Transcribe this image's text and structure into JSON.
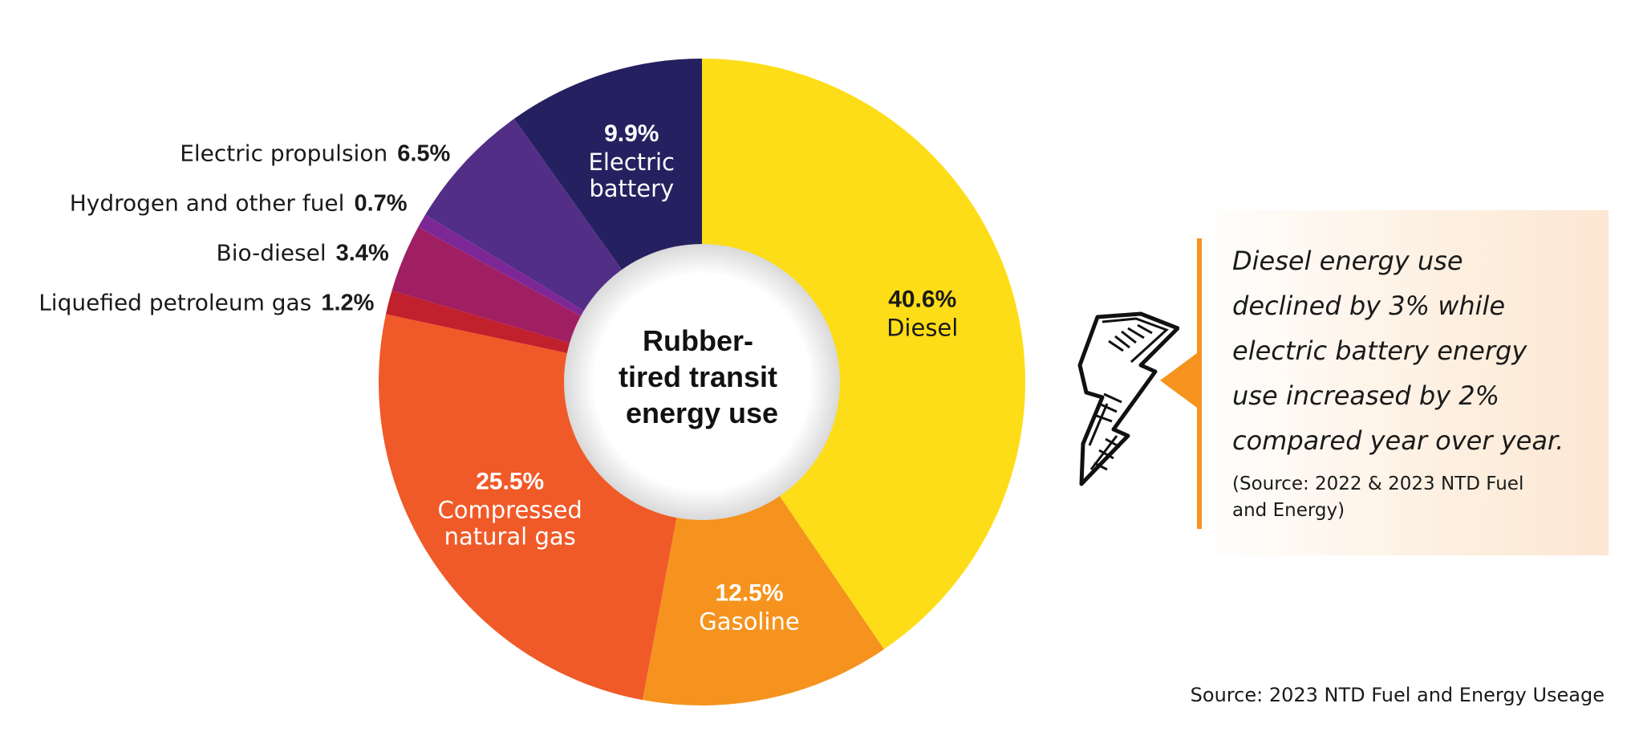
{
  "chart_data": {
    "type": "pie",
    "title": "Rubber-tired transit energy use",
    "title_lines": [
      "Rubber-",
      "tired transit",
      "energy use"
    ],
    "slices": [
      {
        "label": "Diesel",
        "label_lines": [
          "Diesel"
        ],
        "value": 40.6,
        "display": "40.6%",
        "color": "#fddd17",
        "text_color": "#1a1a1a",
        "label_position": "inside"
      },
      {
        "label": "Gasoline",
        "label_lines": [
          "Gasoline"
        ],
        "value": 12.5,
        "display": "12.5%",
        "color": "#f5931e",
        "text_color": "#ffffff",
        "label_position": "inside"
      },
      {
        "label": "Compressed natural gas",
        "label_lines": [
          "Compressed",
          "natural gas"
        ],
        "value": 25.5,
        "display": "25.5%",
        "color": "#f05a28",
        "text_color": "#ffffff",
        "label_position": "inside"
      },
      {
        "label": "Liquefied petroleum gas",
        "label_lines": [
          "Liquefied petroleum gas"
        ],
        "value": 1.2,
        "display": "1.2%",
        "color": "#c1202d",
        "text_color": "#1a1a1a",
        "label_position": "outside"
      },
      {
        "label": "Bio-diesel",
        "label_lines": [
          "Bio-diesel"
        ],
        "value": 3.4,
        "display": "3.4%",
        "color": "#a01f63",
        "text_color": "#1a1a1a",
        "label_position": "outside"
      },
      {
        "label": "Hydrogen and other fuel",
        "label_lines": [
          "Hydrogen and other fuel"
        ],
        "value": 0.7,
        "display": "0.7%",
        "color": "#7d2796",
        "text_color": "#1a1a1a",
        "label_position": "outside"
      },
      {
        "label": "Electric propulsion",
        "label_lines": [
          "Electric propulsion"
        ],
        "value": 6.5,
        "display": "6.5%",
        "color": "#532e87",
        "text_color": "#1a1a1a",
        "label_position": "outside"
      },
      {
        "label": "Electric battery",
        "label_lines": [
          "Electric",
          "battery"
        ],
        "value": 9.9,
        "display": "9.9%",
        "color": "#252160",
        "text_color": "#ffffff",
        "label_position": "inside"
      }
    ]
  },
  "callout": {
    "text": "Diesel energy use declined by 3% while electric battery energy use increased by 2% compared year over year.",
    "text_lines": [
      "Diesel energy use",
      "declined by 3% while",
      "electric battery energy",
      "use increased by 2%",
      "compared year over year."
    ],
    "source_lines": [
      "(Source: 2022 & 2023 NTD Fuel",
      "and Energy)"
    ],
    "accent_color": "#f5931e",
    "icon": "lightning-bolt-icon"
  },
  "footer": {
    "source": "Source: 2023 NTD Fuel and Energy Useage"
  }
}
